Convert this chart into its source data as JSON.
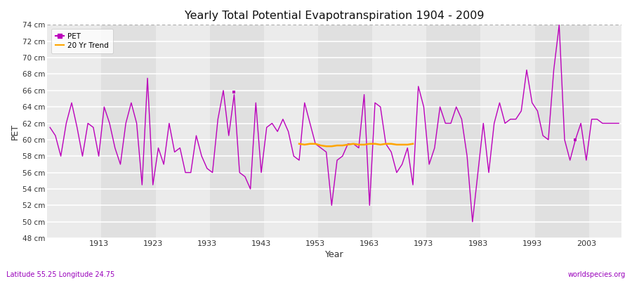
{
  "title": "Yearly Total Potential Evapotranspiration 1904 - 2009",
  "xlabel": "Year",
  "ylabel": "PET",
  "subtitle_left": "Latitude 55.25 Longitude 24.75",
  "subtitle_right": "worldspecies.org",
  "pet_color": "#BB00BB",
  "trend_color": "#FFA500",
  "bg_color": "#ffffff",
  "plot_bg_color": "#e0e0e0",
  "stripe_color": "#ebebeb",
  "grid_line_color": "#ffffff",
  "ylim": [
    48,
    74
  ],
  "ytick_labels": [
    "48 cm",
    "50 cm",
    "52 cm",
    "54 cm",
    "56 cm",
    "58 cm",
    "60 cm",
    "62 cm",
    "64 cm",
    "66 cm",
    "68 cm",
    "70 cm",
    "72 cm",
    "74 cm"
  ],
  "ytick_values": [
    48,
    50,
    52,
    54,
    56,
    58,
    60,
    62,
    64,
    66,
    68,
    70,
    72,
    74
  ],
  "years": [
    1904,
    1905,
    1906,
    1907,
    1908,
    1909,
    1910,
    1911,
    1912,
    1913,
    1914,
    1915,
    1916,
    1917,
    1918,
    1919,
    1920,
    1921,
    1922,
    1923,
    1924,
    1925,
    1926,
    1927,
    1928,
    1929,
    1930,
    1931,
    1932,
    1933,
    1934,
    1935,
    1936,
    1937,
    1938,
    1939,
    1940,
    1941,
    1942,
    1943,
    1944,
    1945,
    1946,
    1947,
    1948,
    1949,
    1950,
    1951,
    1952,
    1953,
    1954,
    1955,
    1956,
    1957,
    1958,
    1959,
    1960,
    1961,
    1962,
    1963,
    1964,
    1965,
    1966,
    1967,
    1968,
    1969,
    1970,
    1971,
    1972,
    1973,
    1974,
    1975,
    1976,
    1977,
    1978,
    1979,
    1980,
    1981,
    1982,
    1983,
    1984,
    1985,
    1986,
    1987,
    1988,
    1989,
    1990,
    1991,
    1992,
    1993,
    1994,
    1995,
    1996,
    1997,
    1998,
    1999,
    2000,
    2001,
    2002,
    2003,
    2004,
    2005,
    2006,
    2007,
    2008,
    2009
  ],
  "pet_values": [
    61.5,
    60.5,
    58.0,
    62.0,
    64.5,
    61.5,
    58.0,
    62.0,
    61.5,
    58.0,
    64.0,
    62.0,
    59.0,
    57.0,
    62.0,
    64.5,
    62.0,
    54.5,
    67.5,
    54.5,
    59.0,
    57.0,
    62.0,
    58.5,
    59.0,
    56.0,
    56.0,
    60.5,
    58.0,
    56.5,
    56.0,
    62.5,
    66.0,
    60.5,
    65.5,
    56.0,
    55.5,
    54.0,
    64.5,
    56.0,
    61.5,
    62.0,
    61.0,
    62.5,
    61.0,
    58.0,
    57.5,
    64.5,
    62.0,
    59.5,
    59.0,
    58.5,
    52.0,
    57.5,
    58.0,
    59.5,
    59.5,
    59.0,
    65.5,
    52.0,
    64.5,
    64.0,
    59.5,
    58.5,
    56.0,
    57.0,
    59.0,
    54.5,
    66.5,
    64.0,
    57.0,
    59.0,
    64.0,
    62.0,
    62.0,
    64.0,
    62.5,
    58.0,
    50.0,
    56.0,
    62.0,
    56.0,
    62.0,
    64.5,
    62.0,
    62.5,
    62.5,
    63.5,
    68.5,
    64.5,
    63.5,
    60.5,
    60.0,
    68.5,
    74.0,
    60.0,
    57.5,
    60.0,
    62.0,
    57.5,
    62.5,
    62.5,
    62.0,
    62.0,
    62.0,
    62.0
  ],
  "trend_years": [
    1950,
    1951,
    1952,
    1953,
    1954,
    1955,
    1956,
    1957,
    1958,
    1959,
    1960,
    1961,
    1962,
    1963,
    1964,
    1965,
    1966,
    1967,
    1968,
    1969,
    1970,
    1971
  ],
  "trend_values": [
    59.5,
    59.4,
    59.5,
    59.5,
    59.3,
    59.2,
    59.2,
    59.3,
    59.3,
    59.4,
    59.5,
    59.4,
    59.4,
    59.5,
    59.5,
    59.4,
    59.5,
    59.5,
    59.4,
    59.4,
    59.4,
    59.5
  ],
  "dot_year": 1938,
  "dot_value": 65.8,
  "dot2_year": 2001,
  "dot2_value": 60.0,
  "xticks": [
    1913,
    1923,
    1933,
    1943,
    1953,
    1963,
    1973,
    1983,
    1993,
    2003
  ]
}
